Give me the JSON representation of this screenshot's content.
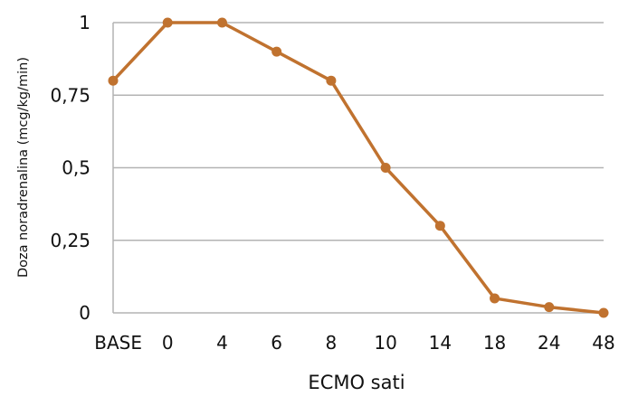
{
  "chart_data": {
    "type": "line",
    "title": "",
    "xlabel": "ECMO sati",
    "ylabel": "Doza noradrenalina (mcg/kg/min)",
    "categories": [
      "BASE",
      "0",
      "4",
      "6",
      "8",
      "10",
      "14",
      "18",
      "24",
      "48"
    ],
    "series": [
      {
        "values": [
          0.8,
          1.0,
          1.0,
          0.9,
          0.8,
          0.5,
          0.3,
          0.05,
          0.02,
          0.0
        ]
      }
    ],
    "ylim": [
      0,
      1
    ],
    "yticks": [
      0,
      0.25,
      0.5,
      0.75,
      1
    ],
    "ytick_labels": [
      "0",
      "0,25",
      "0,5",
      "0,75",
      "1"
    ],
    "grid": true,
    "legend": "none",
    "line_color": "#c0722f",
    "grid_color": "#b3b3b3"
  }
}
